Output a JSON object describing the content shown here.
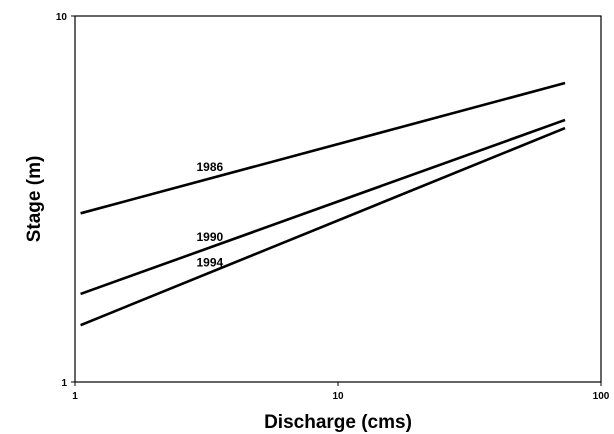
{
  "chart_data": {
    "type": "line",
    "x_label": "Discharge (cms)",
    "y_label": "Stage (m)",
    "x": [
      1.05,
      73
    ],
    "series": [
      {
        "name": "1986",
        "color": "#000000",
        "values": [
          2.89,
          6.56
        ]
      },
      {
        "name": "1990",
        "color": "#000000",
        "values": [
          1.74,
          5.2
        ]
      },
      {
        "name": "1994",
        "color": "#000000",
        "values": [
          1.43,
          4.94
        ]
      }
    ],
    "xlim": [
      1,
      100
    ],
    "ylim": [
      1,
      10
    ],
    "xticks": [
      1,
      10,
      100
    ],
    "yticks": [
      1,
      10
    ],
    "xscale": "log",
    "yscale": "log",
    "grid": false
  }
}
